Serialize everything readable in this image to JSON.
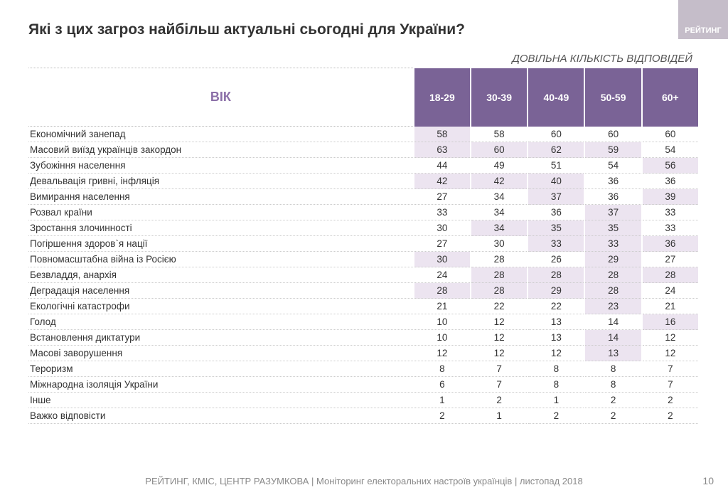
{
  "title": "Які з цих загроз найбільш актуальні сьогодні для України?",
  "subtitle": "ДОВІЛЬНА КІЛЬКІСТЬ ВІДПОВІДЕЙ",
  "logo": "РЕЙТИНГ",
  "row_header": "ВІК",
  "columns": [
    "18-29",
    "30-39",
    "40-49",
    "50-59",
    "60+"
  ],
  "colors": {
    "header_bg": "#7a6396",
    "header_fg": "#ffffff",
    "rowhead_fg": "#8b6fa8",
    "shade_bg": "#ece4f0",
    "plain_bg": "#ffffff",
    "text": "#333333",
    "dotted": "#cccccc"
  },
  "rows": [
    {
      "label": "Економічний занепад",
      "v": [
        58,
        58,
        60,
        60,
        60
      ],
      "shade": [
        1,
        0,
        0,
        0,
        0
      ]
    },
    {
      "label": "Масовий виїзд українців закордон",
      "v": [
        63,
        60,
        62,
        59,
        54
      ],
      "shade": [
        1,
        1,
        1,
        1,
        0
      ]
    },
    {
      "label": "Зубожіння населення",
      "v": [
        44,
        49,
        51,
        54,
        56
      ],
      "shade": [
        0,
        0,
        0,
        0,
        1
      ]
    },
    {
      "label": "Девальвація гривні, інфляція",
      "v": [
        42,
        42,
        40,
        36,
        36
      ],
      "shade": [
        1,
        1,
        1,
        0,
        0
      ]
    },
    {
      "label": "Вимирання населення",
      "v": [
        27,
        34,
        37,
        36,
        39
      ],
      "shade": [
        0,
        0,
        1,
        0,
        1
      ]
    },
    {
      "label": "Розвал країни",
      "v": [
        33,
        34,
        36,
        37,
        33
      ],
      "shade": [
        0,
        0,
        0,
        1,
        0
      ]
    },
    {
      "label": "Зростання злочинності",
      "v": [
        30,
        34,
        35,
        35,
        33
      ],
      "shade": [
        0,
        1,
        1,
        1,
        0
      ]
    },
    {
      "label": "Погіршення здоров`я нації",
      "v": [
        27,
        30,
        33,
        33,
        36
      ],
      "shade": [
        0,
        0,
        1,
        1,
        1
      ]
    },
    {
      "label": "Повномасштабна війна із Росією",
      "v": [
        30,
        28,
        26,
        29,
        27
      ],
      "shade": [
        1,
        0,
        0,
        1,
        0
      ]
    },
    {
      "label": "Безвладдя, анархія",
      "v": [
        24,
        28,
        28,
        28,
        28
      ],
      "shade": [
        0,
        1,
        1,
        1,
        1
      ]
    },
    {
      "label": "Деградація населення",
      "v": [
        28,
        28,
        29,
        28,
        24
      ],
      "shade": [
        1,
        1,
        1,
        1,
        0
      ]
    },
    {
      "label": "Екологічні катастрофи",
      "v": [
        21,
        22,
        22,
        23,
        21
      ],
      "shade": [
        0,
        0,
        0,
        1,
        0
      ]
    },
    {
      "label": "Голод",
      "v": [
        10,
        12,
        13,
        14,
        16
      ],
      "shade": [
        0,
        0,
        0,
        0,
        1
      ]
    },
    {
      "label": "Встановлення диктатури",
      "v": [
        10,
        12,
        13,
        14,
        12
      ],
      "shade": [
        0,
        0,
        0,
        1,
        0
      ]
    },
    {
      "label": "Масові заворушення",
      "v": [
        12,
        12,
        12,
        13,
        12
      ],
      "shade": [
        0,
        0,
        0,
        1,
        0
      ]
    },
    {
      "label": "Тероризм",
      "v": [
        8,
        7,
        8,
        8,
        7
      ],
      "shade": [
        0,
        0,
        0,
        0,
        0
      ]
    },
    {
      "label": "Міжнародна ізоляція України",
      "v": [
        6,
        7,
        8,
        8,
        7
      ],
      "shade": [
        0,
        0,
        0,
        0,
        0
      ]
    },
    {
      "label": "Інше",
      "v": [
        1,
        2,
        1,
        2,
        2
      ],
      "shade": [
        0,
        0,
        0,
        0,
        0
      ]
    },
    {
      "label": "Важко відповісти",
      "v": [
        2,
        1,
        2,
        2,
        2
      ],
      "shade": [
        0,
        0,
        0,
        0,
        0
      ]
    }
  ],
  "footer": "РЕЙТИНГ, КМІС, ЦЕНТР РАЗУМКОВА  |  Моніторинг електоральних настроїв українців | листопад 2018",
  "page_number": "10"
}
